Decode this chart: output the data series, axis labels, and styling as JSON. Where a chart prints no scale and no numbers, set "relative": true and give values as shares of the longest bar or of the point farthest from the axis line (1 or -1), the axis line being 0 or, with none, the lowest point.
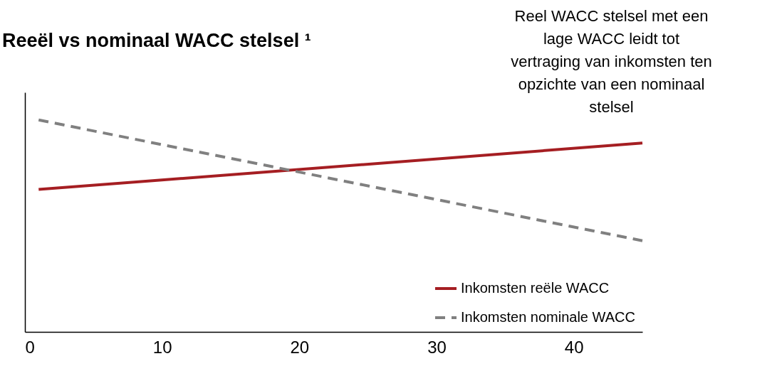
{
  "chart_data": {
    "type": "line",
    "title": "Reeël vs nominaal WACC stelsel ¹",
    "relative": true,
    "x": [
      1,
      45
    ],
    "xlim": [
      0,
      45
    ],
    "xticks": [
      0,
      10,
      20,
      30,
      40
    ],
    "grid": false,
    "legend": "bottom right",
    "marker": "none",
    "series": [
      {
        "name": "Inkomsten reële WACC",
        "color": "#a51e22",
        "values": [
          0.672,
          0.891
        ],
        "line_style": "solid"
      },
      {
        "name": "Inkomsten nominale WACC",
        "color": "#808080",
        "values": [
          1,
          0.43
        ],
        "line_style": "dashed"
      }
    ],
    "annotations": [
      "Reel WACC stelsel met een lage WACC leidt tot vertraging van inkomsten ten opzichte van een nominaal stelsel"
    ]
  }
}
